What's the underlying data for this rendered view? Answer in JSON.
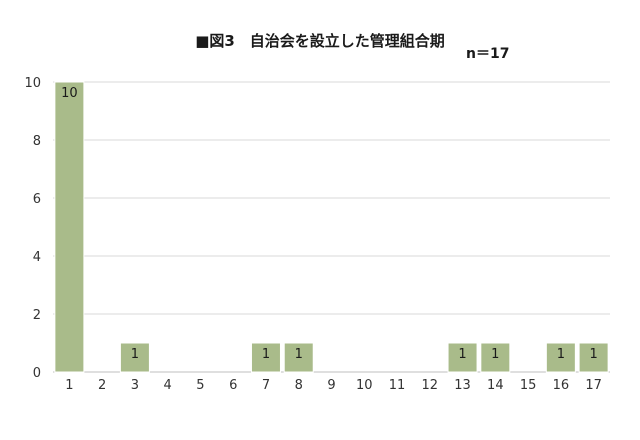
{
  "chart_data": {
    "type": "bar",
    "title": "■図3　自治会を設立した管理組合期",
    "annotation": "n＝17",
    "categories": [
      "1",
      "2",
      "3",
      "4",
      "5",
      "6",
      "7",
      "8",
      "9",
      "10",
      "11",
      "12",
      "13",
      "14",
      "15",
      "16",
      "17"
    ],
    "values": [
      10,
      0,
      1,
      0,
      0,
      0,
      1,
      1,
      0,
      0,
      0,
      0,
      1,
      1,
      0,
      1,
      1
    ],
    "data_labels": [
      "10",
      "",
      "1",
      "",
      "",
      "",
      "1",
      "1",
      "",
      "",
      "",
      "",
      "1",
      "1",
      "",
      "1",
      "1"
    ],
    "ylim": [
      0,
      10
    ],
    "yticks": [
      0,
      2,
      4,
      6,
      8,
      10
    ],
    "xlabel": "",
    "ylabel": "",
    "grid": true,
    "bar_color": "#a9bb8a",
    "grid_color": "#d9d9d9"
  }
}
